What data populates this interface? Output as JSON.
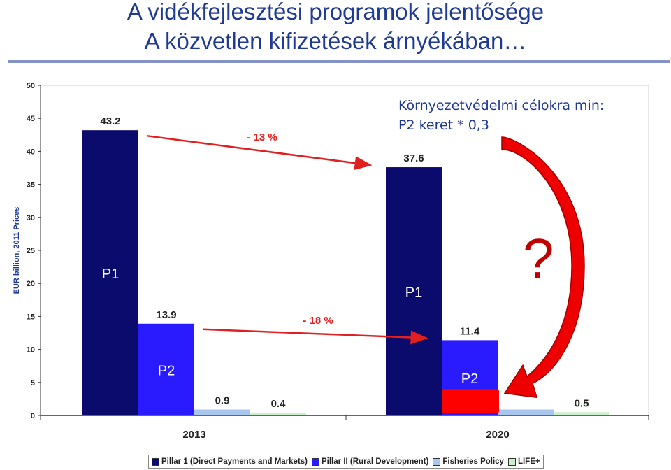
{
  "header": {
    "title": "A vidékfejlesztési programok jelentősége",
    "subtitle": "A közvetlen kifizetések árnyékában…"
  },
  "annotation": {
    "line1": "Környezetvédelmi célokra min:",
    "line2": "P2 keret * 0,3",
    "question": "?"
  },
  "chart_data": {
    "type": "bar",
    "ylabel": "EUR billion, 2011 Prices",
    "ylim": [
      0,
      50
    ],
    "yticks": [
      0,
      5,
      10,
      15,
      20,
      25,
      30,
      35,
      40,
      45,
      50
    ],
    "categories": [
      "2013",
      "2020"
    ],
    "series": [
      {
        "name": "Pillar 1 (Direct Payments and Markets)",
        "values": [
          43.2,
          37.6
        ],
        "value_labels": [
          "43.2",
          "37.6"
        ],
        "bar_text": "P1",
        "color": "#0b0b6e"
      },
      {
        "name": "Pillar II (Rural Development)",
        "values": [
          13.9,
          11.4
        ],
        "value_labels": [
          "13.9",
          "11.4"
        ],
        "bar_text": "P2",
        "color": "#2a1bff"
      },
      {
        "name": "Fisheries Policy",
        "values": [
          0.9,
          0.9
        ],
        "value_labels": [
          "0.9",
          ""
        ],
        "bar_text": "",
        "color": "#a8c6ee"
      },
      {
        "name": "LIFE+",
        "values": [
          0.4,
          0.5
        ],
        "value_labels": [
          "0.4",
          "0.5"
        ],
        "bar_text": "",
        "color": "#c9f0c9"
      }
    ],
    "arrows": [
      {
        "label": "- 13 %",
        "from_series": 0
      },
      {
        "label": "- 18 %",
        "from_series": 1
      }
    ],
    "highlight": {
      "category": "2020",
      "series": 1,
      "y_range": [
        0,
        4
      ],
      "color": "#ff0000"
    },
    "legend": "bottom",
    "grid": false
  }
}
